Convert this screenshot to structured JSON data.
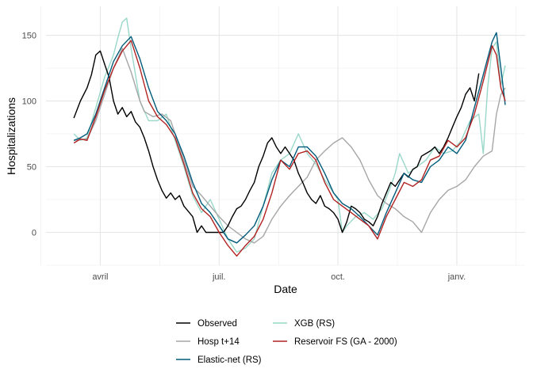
{
  "chart_data": {
    "type": "line",
    "xlabel": "Date",
    "ylabel": "Hospitalizations",
    "x_ticks": [
      "avril",
      "juil.",
      "oct.",
      "janv."
    ],
    "x_tick_positions": [
      0.08,
      0.35,
      0.62,
      0.89
    ],
    "x_range": [
      0,
      1
    ],
    "y_ticks": [
      0,
      50,
      100,
      150
    ],
    "ylim": [
      -25,
      172
    ],
    "grid": true,
    "legend_position": "bottom",
    "series": [
      {
        "name": "Observed",
        "color": "#000000",
        "points": [
          [
            0.02,
            87
          ],
          [
            0.035,
            100
          ],
          [
            0.05,
            110
          ],
          [
            0.06,
            120
          ],
          [
            0.07,
            135
          ],
          [
            0.08,
            138
          ],
          [
            0.09,
            128
          ],
          [
            0.1,
            118
          ],
          [
            0.11,
            100
          ],
          [
            0.12,
            90
          ],
          [
            0.13,
            95
          ],
          [
            0.14,
            88
          ],
          [
            0.15,
            92
          ],
          [
            0.16,
            84
          ],
          [
            0.17,
            80
          ],
          [
            0.18,
            72
          ],
          [
            0.19,
            62
          ],
          [
            0.2,
            50
          ],
          [
            0.21,
            40
          ],
          [
            0.22,
            32
          ],
          [
            0.23,
            26
          ],
          [
            0.24,
            30
          ],
          [
            0.25,
            25
          ],
          [
            0.26,
            28
          ],
          [
            0.27,
            20
          ],
          [
            0.28,
            16
          ],
          [
            0.29,
            12
          ],
          [
            0.3,
            0
          ],
          [
            0.31,
            5
          ],
          [
            0.32,
            0
          ],
          [
            0.33,
            0
          ],
          [
            0.34,
            0
          ],
          [
            0.35,
            0
          ],
          [
            0.36,
            0
          ],
          [
            0.37,
            5
          ],
          [
            0.38,
            12
          ],
          [
            0.39,
            18
          ],
          [
            0.4,
            20
          ],
          [
            0.41,
            25
          ],
          [
            0.42,
            32
          ],
          [
            0.43,
            38
          ],
          [
            0.44,
            50
          ],
          [
            0.45,
            58
          ],
          [
            0.46,
            68
          ],
          [
            0.47,
            72
          ],
          [
            0.48,
            65
          ],
          [
            0.49,
            60
          ],
          [
            0.5,
            65
          ],
          [
            0.51,
            60
          ],
          [
            0.52,
            55
          ],
          [
            0.53,
            45
          ],
          [
            0.54,
            38
          ],
          [
            0.55,
            30
          ],
          [
            0.56,
            25
          ],
          [
            0.57,
            22
          ],
          [
            0.58,
            28
          ],
          [
            0.59,
            20
          ],
          [
            0.6,
            18
          ],
          [
            0.61,
            15
          ],
          [
            0.62,
            10
          ],
          [
            0.63,
            0
          ],
          [
            0.64,
            8
          ],
          [
            0.65,
            20
          ],
          [
            0.66,
            18
          ],
          [
            0.67,
            15
          ],
          [
            0.68,
            10
          ],
          [
            0.69,
            8
          ],
          [
            0.7,
            5
          ],
          [
            0.71,
            12
          ],
          [
            0.72,
            22
          ],
          [
            0.73,
            30
          ],
          [
            0.74,
            38
          ],
          [
            0.75,
            35
          ],
          [
            0.76,
            40
          ],
          [
            0.77,
            45
          ],
          [
            0.78,
            42
          ],
          [
            0.79,
            48
          ],
          [
            0.8,
            50
          ],
          [
            0.81,
            58
          ],
          [
            0.82,
            60
          ],
          [
            0.83,
            62
          ],
          [
            0.84,
            65
          ],
          [
            0.85,
            60
          ],
          [
            0.86,
            65
          ],
          [
            0.87,
            72
          ],
          [
            0.88,
            80
          ],
          [
            0.89,
            88
          ],
          [
            0.9,
            95
          ],
          [
            0.91,
            105
          ],
          [
            0.92,
            110
          ],
          [
            0.93,
            100
          ],
          [
            0.94,
            121
          ]
        ]
      },
      {
        "name": "Hosp t+14",
        "color": "#a6a6a6",
        "points": [
          [
            0.02,
            70
          ],
          [
            0.05,
            71
          ],
          [
            0.07,
            85
          ],
          [
            0.09,
            105
          ],
          [
            0.11,
            125
          ],
          [
            0.13,
            140
          ],
          [
            0.15,
            122
          ],
          [
            0.17,
            100
          ],
          [
            0.18,
            92
          ],
          [
            0.2,
            88
          ],
          [
            0.22,
            90
          ],
          [
            0.24,
            85
          ],
          [
            0.25,
            75
          ],
          [
            0.27,
            55
          ],
          [
            0.29,
            35
          ],
          [
            0.31,
            28
          ],
          [
            0.33,
            20
          ],
          [
            0.35,
            12
          ],
          [
            0.37,
            5
          ],
          [
            0.39,
            0
          ],
          [
            0.41,
            -5
          ],
          [
            0.43,
            -8
          ],
          [
            0.45,
            -3
          ],
          [
            0.47,
            10
          ],
          [
            0.49,
            20
          ],
          [
            0.51,
            28
          ],
          [
            0.53,
            35
          ],
          [
            0.55,
            42
          ],
          [
            0.57,
            55
          ],
          [
            0.59,
            62
          ],
          [
            0.61,
            68
          ],
          [
            0.63,
            72
          ],
          [
            0.65,
            65
          ],
          [
            0.67,
            55
          ],
          [
            0.69,
            40
          ],
          [
            0.71,
            28
          ],
          [
            0.73,
            22
          ],
          [
            0.75,
            18
          ],
          [
            0.77,
            12
          ],
          [
            0.79,
            8
          ],
          [
            0.81,
            0
          ],
          [
            0.83,
            15
          ],
          [
            0.85,
            25
          ],
          [
            0.87,
            32
          ],
          [
            0.89,
            35
          ],
          [
            0.91,
            40
          ],
          [
            0.93,
            50
          ],
          [
            0.95,
            58
          ],
          [
            0.97,
            62
          ],
          [
            0.98,
            90
          ],
          [
            0.99,
            105
          ],
          [
            1.0,
            110
          ]
        ]
      },
      {
        "name": "Elastic-net (RS)",
        "color": "#005b7a",
        "points": [
          [
            0.02,
            70
          ],
          [
            0.035,
            72
          ],
          [
            0.05,
            75
          ],
          [
            0.07,
            90
          ],
          [
            0.09,
            110
          ],
          [
            0.11,
            130
          ],
          [
            0.13,
            142
          ],
          [
            0.15,
            149
          ],
          [
            0.17,
            132
          ],
          [
            0.19,
            110
          ],
          [
            0.21,
            92
          ],
          [
            0.23,
            85
          ],
          [
            0.25,
            75
          ],
          [
            0.27,
            58
          ],
          [
            0.29,
            38
          ],
          [
            0.31,
            22
          ],
          [
            0.33,
            15
          ],
          [
            0.35,
            5
          ],
          [
            0.37,
            -5
          ],
          [
            0.39,
            -8
          ],
          [
            0.41,
            -2
          ],
          [
            0.43,
            5
          ],
          [
            0.45,
            20
          ],
          [
            0.47,
            40
          ],
          [
            0.49,
            55
          ],
          [
            0.51,
            50
          ],
          [
            0.53,
            65
          ],
          [
            0.55,
            65
          ],
          [
            0.57,
            58
          ],
          [
            0.59,
            45
          ],
          [
            0.61,
            30
          ],
          [
            0.63,
            22
          ],
          [
            0.65,
            18
          ],
          [
            0.67,
            12
          ],
          [
            0.69,
            5
          ],
          [
            0.71,
            -2
          ],
          [
            0.73,
            15
          ],
          [
            0.75,
            30
          ],
          [
            0.77,
            45
          ],
          [
            0.79,
            40
          ],
          [
            0.81,
            38
          ],
          [
            0.83,
            50
          ],
          [
            0.85,
            55
          ],
          [
            0.87,
            65
          ],
          [
            0.89,
            60
          ],
          [
            0.91,
            70
          ],
          [
            0.93,
            95
          ],
          [
            0.95,
            120
          ],
          [
            0.97,
            145
          ],
          [
            0.98,
            152
          ],
          [
            0.99,
            125
          ],
          [
            1.0,
            97
          ]
        ]
      },
      {
        "name": "XGB (RS)",
        "color": "#99d8c9",
        "points": [
          [
            0.02,
            75
          ],
          [
            0.035,
            70
          ],
          [
            0.05,
            72
          ],
          [
            0.07,
            95
          ],
          [
            0.09,
            118
          ],
          [
            0.11,
            135
          ],
          [
            0.12,
            148
          ],
          [
            0.13,
            160
          ],
          [
            0.14,
            163
          ],
          [
            0.15,
            140
          ],
          [
            0.16,
            120
          ],
          [
            0.17,
            100
          ],
          [
            0.19,
            85
          ],
          [
            0.21,
            85
          ],
          [
            0.23,
            90
          ],
          [
            0.25,
            70
          ],
          [
            0.27,
            50
          ],
          [
            0.29,
            28
          ],
          [
            0.31,
            15
          ],
          [
            0.33,
            25
          ],
          [
            0.35,
            10
          ],
          [
            0.37,
            -5
          ],
          [
            0.39,
            -15
          ],
          [
            0.41,
            -12
          ],
          [
            0.43,
            -5
          ],
          [
            0.45,
            20
          ],
          [
            0.47,
            45
          ],
          [
            0.49,
            55
          ],
          [
            0.51,
            60
          ],
          [
            0.53,
            75
          ],
          [
            0.55,
            60
          ],
          [
            0.57,
            52
          ],
          [
            0.59,
            40
          ],
          [
            0.61,
            30
          ],
          [
            0.62,
            25
          ],
          [
            0.63,
            0
          ],
          [
            0.64,
            5
          ],
          [
            0.66,
            12
          ],
          [
            0.68,
            15
          ],
          [
            0.7,
            10
          ],
          [
            0.72,
            18
          ],
          [
            0.74,
            35
          ],
          [
            0.75,
            45
          ],
          [
            0.76,
            60
          ],
          [
            0.78,
            45
          ],
          [
            0.8,
            50
          ],
          [
            0.82,
            55
          ],
          [
            0.84,
            65
          ],
          [
            0.86,
            60
          ],
          [
            0.88,
            62
          ],
          [
            0.9,
            70
          ],
          [
            0.92,
            85
          ],
          [
            0.94,
            90
          ],
          [
            0.95,
            60
          ],
          [
            0.96,
            110
          ],
          [
            0.97,
            140
          ],
          [
            0.98,
            145
          ],
          [
            0.99,
            112
          ],
          [
            1.0,
            127
          ]
        ]
      },
      {
        "name": "Reservoir FS (GA - 2000)",
        "color": "#b22222",
        "points": [
          [
            0.02,
            68
          ],
          [
            0.035,
            71
          ],
          [
            0.05,
            70
          ],
          [
            0.07,
            88
          ],
          [
            0.09,
            108
          ],
          [
            0.11,
            125
          ],
          [
            0.13,
            138
          ],
          [
            0.15,
            146
          ],
          [
            0.17,
            125
          ],
          [
            0.19,
            100
          ],
          [
            0.21,
            88
          ],
          [
            0.23,
            82
          ],
          [
            0.25,
            72
          ],
          [
            0.27,
            52
          ],
          [
            0.29,
            30
          ],
          [
            0.31,
            18
          ],
          [
            0.33,
            12
          ],
          [
            0.35,
            0
          ],
          [
            0.37,
            -10
          ],
          [
            0.39,
            -18
          ],
          [
            0.41,
            -10
          ],
          [
            0.43,
            -3
          ],
          [
            0.45,
            10
          ],
          [
            0.47,
            30
          ],
          [
            0.49,
            55
          ],
          [
            0.51,
            48
          ],
          [
            0.53,
            60
          ],
          [
            0.55,
            62
          ],
          [
            0.57,
            55
          ],
          [
            0.59,
            38
          ],
          [
            0.61,
            25
          ],
          [
            0.63,
            20
          ],
          [
            0.65,
            15
          ],
          [
            0.67,
            10
          ],
          [
            0.69,
            5
          ],
          [
            0.71,
            -5
          ],
          [
            0.73,
            12
          ],
          [
            0.75,
            25
          ],
          [
            0.77,
            38
          ],
          [
            0.79,
            35
          ],
          [
            0.81,
            40
          ],
          [
            0.83,
            55
          ],
          [
            0.85,
            58
          ],
          [
            0.87,
            70
          ],
          [
            0.89,
            65
          ],
          [
            0.91,
            72
          ],
          [
            0.93,
            90
          ],
          [
            0.95,
            115
          ],
          [
            0.97,
            142
          ],
          [
            0.98,
            135
          ],
          [
            0.99,
            110
          ],
          [
            1.0,
            100
          ]
        ]
      }
    ]
  }
}
